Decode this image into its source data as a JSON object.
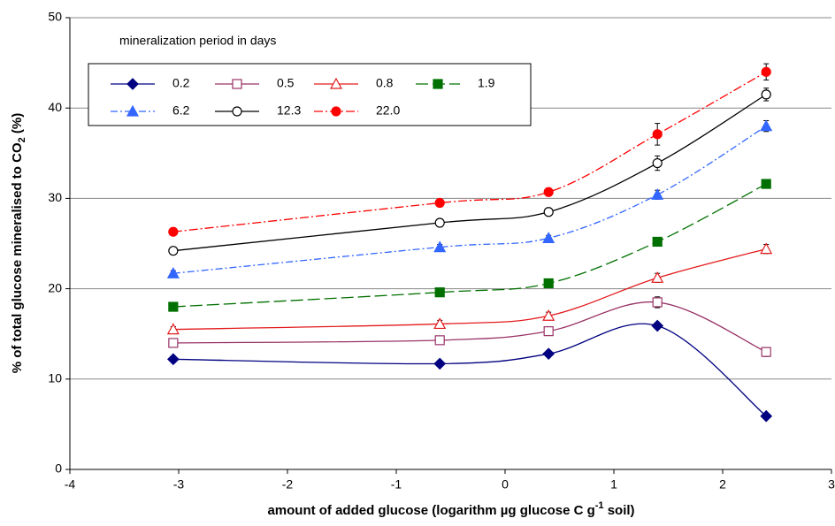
{
  "chart_data": {
    "type": "line",
    "x_label_parts": [
      "amount of added glucose (logarithm µg glucose C g",
      "-1",
      " soil)"
    ],
    "y_label_parts": [
      "% of total glucose mineralised to CO",
      "2",
      " (%)"
    ],
    "legend_title": "mineralization period in days",
    "x": [
      -3.05,
      -0.6,
      0.4,
      1.4,
      2.4
    ],
    "xlim": [
      -4,
      3
    ],
    "xticks": [
      -4,
      -3,
      -2,
      -1,
      0,
      1,
      2,
      3
    ],
    "ylim": [
      0,
      50
    ],
    "yticks": [
      0,
      10,
      20,
      30,
      40,
      50
    ],
    "grid": true,
    "series": [
      {
        "name": "0.2",
        "color": "#000080",
        "marker": "diamond",
        "filled": true,
        "dash": "",
        "values": [
          12.2,
          11.7,
          12.8,
          15.9,
          5.9
        ]
      },
      {
        "name": "0.5",
        "color": "#993366",
        "marker": "square",
        "filled": false,
        "dash": "",
        "values": [
          14.0,
          14.3,
          15.3,
          18.5,
          13.0
        ],
        "errors": [
          0.4,
          0.4,
          0.4,
          0.6,
          0.5
        ]
      },
      {
        "name": "0.8",
        "color": "#e31a1c",
        "marker": "triangle",
        "filled": false,
        "dash": "",
        "values": [
          15.5,
          16.1,
          17.0,
          21.2,
          24.4
        ],
        "errors": [
          0.3,
          0.4,
          0.4,
          0.5,
          0.5
        ]
      },
      {
        "name": "1.9",
        "color": "#007000",
        "marker": "square",
        "filled": true,
        "dash": "14 5",
        "values": [
          18.0,
          19.6,
          20.6,
          25.2,
          31.6
        ]
      },
      {
        "name": "6.2",
        "color": "#3366ff",
        "marker": "triangle",
        "filled": true,
        "dash": "8 3 2 3",
        "values": [
          21.7,
          24.6,
          25.6,
          30.4,
          38.0
        ],
        "errors": [
          0.3,
          0.3,
          0.3,
          0.5,
          0.6
        ]
      },
      {
        "name": "12.3",
        "color": "#000000",
        "marker": "circle",
        "filled": false,
        "dash": "",
        "values": [
          24.2,
          27.3,
          28.5,
          33.9,
          41.5
        ],
        "errors": [
          0.4,
          0.4,
          0.4,
          0.8,
          0.7
        ]
      },
      {
        "name": "22.0",
        "color": "#ff0000",
        "marker": "circle",
        "filled": true,
        "dash": "10 3 2 3",
        "values": [
          26.3,
          29.5,
          30.7,
          37.1,
          44.0
        ],
        "errors": [
          0.3,
          0.3,
          0.3,
          1.2,
          0.9
        ]
      }
    ]
  }
}
